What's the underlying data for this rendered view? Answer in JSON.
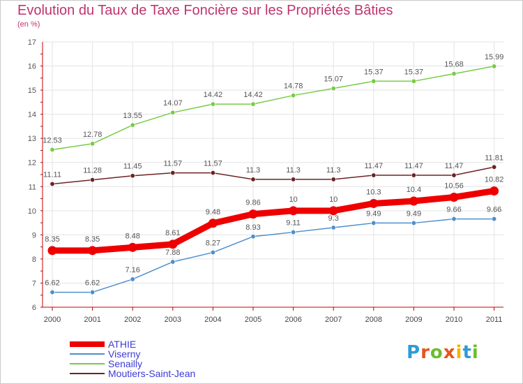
{
  "title": "Evolution du Taux de Taxe Foncière sur les Propriétés Bâties",
  "subtitle": "(en %)",
  "logo": {
    "letters": [
      "P",
      "r",
      "o",
      "x",
      "i",
      "t",
      "i"
    ],
    "colors": [
      "#2e9bd6",
      "#e8541c",
      "#6cbd2e",
      "#e8541c",
      "#f2b600",
      "#2e9bd6",
      "#6cbd2e"
    ]
  },
  "chart_data": {
    "type": "line",
    "x": [
      "2000",
      "2001",
      "2002",
      "2003",
      "2004",
      "2005",
      "2006",
      "2007",
      "2008",
      "2009",
      "2010",
      "2011"
    ],
    "ylim": [
      6,
      17
    ],
    "yticks": [
      "6",
      "7",
      "8",
      "9",
      "10",
      "11",
      "12",
      "13",
      "14",
      "15",
      "16",
      "17"
    ],
    "legend_position": "bottom-left",
    "series": [
      {
        "name": "ATHIE",
        "color": "#ee0000",
        "values": [
          8.35,
          8.35,
          8.48,
          8.61,
          9.48,
          9.86,
          10,
          10,
          10.3,
          10.4,
          10.56,
          10.82
        ],
        "labels": [
          "8.35",
          "8.35",
          "8.48",
          "8.61",
          "9.48",
          "9.86",
          "10",
          "10",
          "10.3",
          "10.4",
          "10.56",
          "10.82"
        ]
      },
      {
        "name": "Viserny",
        "color": "#4d8fcc",
        "values": [
          6.62,
          6.62,
          7.16,
          7.88,
          8.27,
          8.93,
          9.11,
          9.3,
          9.49,
          9.49,
          9.66,
          9.66
        ],
        "labels": [
          "6.62",
          "6.62",
          "7.16",
          "7.88",
          "8.27",
          "8.93",
          "9.11",
          "9.3",
          "9.49",
          "9.49",
          "9.66",
          "9.66"
        ]
      },
      {
        "name": "Senailly",
        "color": "#77cc44",
        "values": [
          12.53,
          12.78,
          13.55,
          14.07,
          14.42,
          14.42,
          14.78,
          15.07,
          15.37,
          15.37,
          15.68,
          15.99
        ],
        "labels": [
          "12.53",
          "12.78",
          "13.55",
          "14.07",
          "14.42",
          "14.42",
          "14.78",
          "15.07",
          "15.37",
          "15.37",
          "15.68",
          "15.99"
        ]
      },
      {
        "name": "Moutiers-Saint-Jean",
        "color": "#6b2323",
        "values": [
          11.11,
          11.28,
          11.45,
          11.57,
          11.57,
          11.3,
          11.3,
          11.3,
          11.47,
          11.47,
          11.47,
          11.81
        ],
        "labels": [
          "11.11",
          "11.28",
          "11.45",
          "11.57",
          "11.57",
          "11.3",
          "11.3",
          "11.3",
          "11.47",
          "11.47",
          "11.47",
          "11.81"
        ]
      }
    ]
  }
}
